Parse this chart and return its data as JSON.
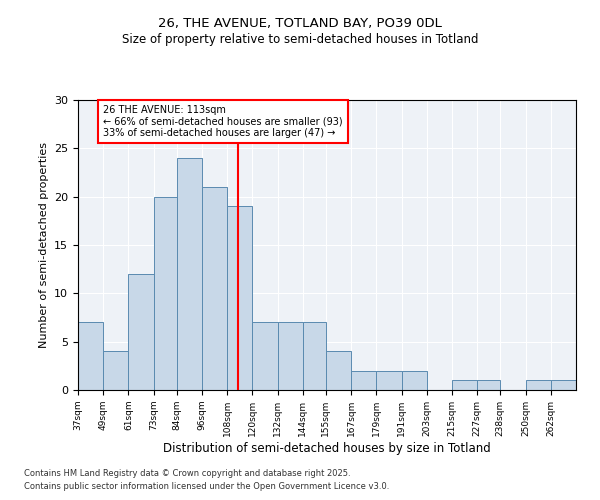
{
  "title1": "26, THE AVENUE, TOTLAND BAY, PO39 0DL",
  "title2": "Size of property relative to semi-detached houses in Totland",
  "xlabel": "Distribution of semi-detached houses by size in Totland",
  "ylabel": "Number of semi-detached properties",
  "bins": [
    37,
    49,
    61,
    73,
    84,
    96,
    108,
    120,
    132,
    144,
    155,
    167,
    179,
    191,
    203,
    215,
    227,
    238,
    250,
    262,
    274
  ],
  "counts": [
    7,
    4,
    12,
    20,
    24,
    21,
    19,
    7,
    7,
    7,
    4,
    2,
    2,
    2,
    0,
    1,
    1,
    0,
    1,
    1
  ],
  "bar_facecolor": "#c8d8e8",
  "bar_edgecolor": "#5a8ab0",
  "vline_x": 113,
  "vline_color": "red",
  "annotation_text": "26 THE AVENUE: 113sqm\n← 66% of semi-detached houses are smaller (93)\n33% of semi-detached houses are larger (47) →",
  "annotation_box_color": "red",
  "ylim": [
    0,
    30
  ],
  "yticks": [
    0,
    5,
    10,
    15,
    20,
    25,
    30
  ],
  "background_color": "#eef2f7",
  "footer1": "Contains HM Land Registry data © Crown copyright and database right 2025.",
  "footer2": "Contains public sector information licensed under the Open Government Licence v3.0."
}
